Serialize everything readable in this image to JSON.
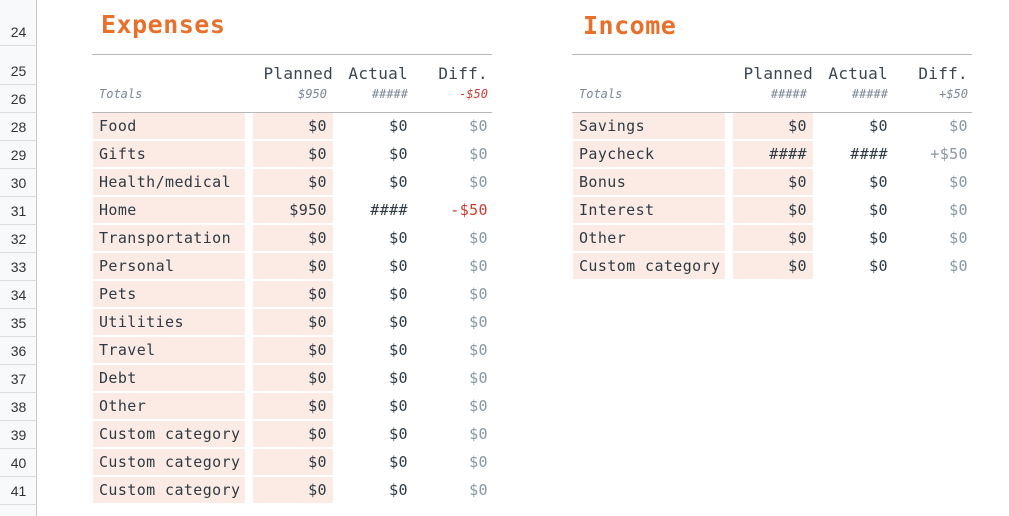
{
  "row_numbers": [
    "24",
    "25",
    "26",
    "28",
    "29",
    "30",
    "31",
    "32",
    "33",
    "34",
    "35",
    "36",
    "37",
    "38",
    "39",
    "40",
    "41"
  ],
  "expenses": {
    "title": "Expenses",
    "headers": {
      "planned": "Planned",
      "actual": "Actual",
      "diff": "Diff."
    },
    "totals": {
      "label": "Totals",
      "planned": "$950",
      "actual": "#####",
      "diff": "-$50"
    },
    "rows": [
      {
        "category": "Food",
        "planned": "$0",
        "actual": "$0",
        "diff": "$0"
      },
      {
        "category": "Gifts",
        "planned": "$0",
        "actual": "$0",
        "diff": "$0"
      },
      {
        "category": "Health/medical",
        "planned": "$0",
        "actual": "$0",
        "diff": "$0"
      },
      {
        "category": "Home",
        "planned": "$950",
        "actual": "####",
        "diff": "-$50"
      },
      {
        "category": "Transportation",
        "planned": "$0",
        "actual": "$0",
        "diff": "$0"
      },
      {
        "category": "Personal",
        "planned": "$0",
        "actual": "$0",
        "diff": "$0"
      },
      {
        "category": "Pets",
        "planned": "$0",
        "actual": "$0",
        "diff": "$0"
      },
      {
        "category": "Utilities",
        "planned": "$0",
        "actual": "$0",
        "diff": "$0"
      },
      {
        "category": "Travel",
        "planned": "$0",
        "actual": "$0",
        "diff": "$0"
      },
      {
        "category": "Debt",
        "planned": "$0",
        "actual": "$0",
        "diff": "$0"
      },
      {
        "category": "Other",
        "planned": "$0",
        "actual": "$0",
        "diff": "$0"
      },
      {
        "category": "Custom category",
        "planned": "$0",
        "actual": "$0",
        "diff": "$0"
      },
      {
        "category": "Custom category",
        "planned": "$0",
        "actual": "$0",
        "diff": "$0"
      },
      {
        "category": "Custom category",
        "planned": "$0",
        "actual": "$0",
        "diff": "$0"
      }
    ]
  },
  "income": {
    "title": "Income",
    "headers": {
      "planned": "Planned",
      "actual": "Actual",
      "diff": "Diff."
    },
    "totals": {
      "label": "Totals",
      "planned": "#####",
      "actual": "#####",
      "diff": "+$50"
    },
    "rows": [
      {
        "category": "Savings",
        "planned": "$0",
        "actual": "$0",
        "diff": "$0"
      },
      {
        "category": "Paycheck",
        "planned": "####",
        "actual": "####",
        "diff": "+$50"
      },
      {
        "category": "Bonus",
        "planned": "$0",
        "actual": "$0",
        "diff": "$0"
      },
      {
        "category": "Interest",
        "planned": "$0",
        "actual": "$0",
        "diff": "$0"
      },
      {
        "category": "Other",
        "planned": "$0",
        "actual": "$0",
        "diff": "$0"
      },
      {
        "category": "Custom category",
        "planned": "$0",
        "actual": "$0",
        "diff": "$0"
      }
    ]
  },
  "colors": {
    "title": "#e8702a",
    "category_fill": "#fbebe4",
    "negative": "#cc3b2f",
    "diff_text": "#8a96a3"
  }
}
